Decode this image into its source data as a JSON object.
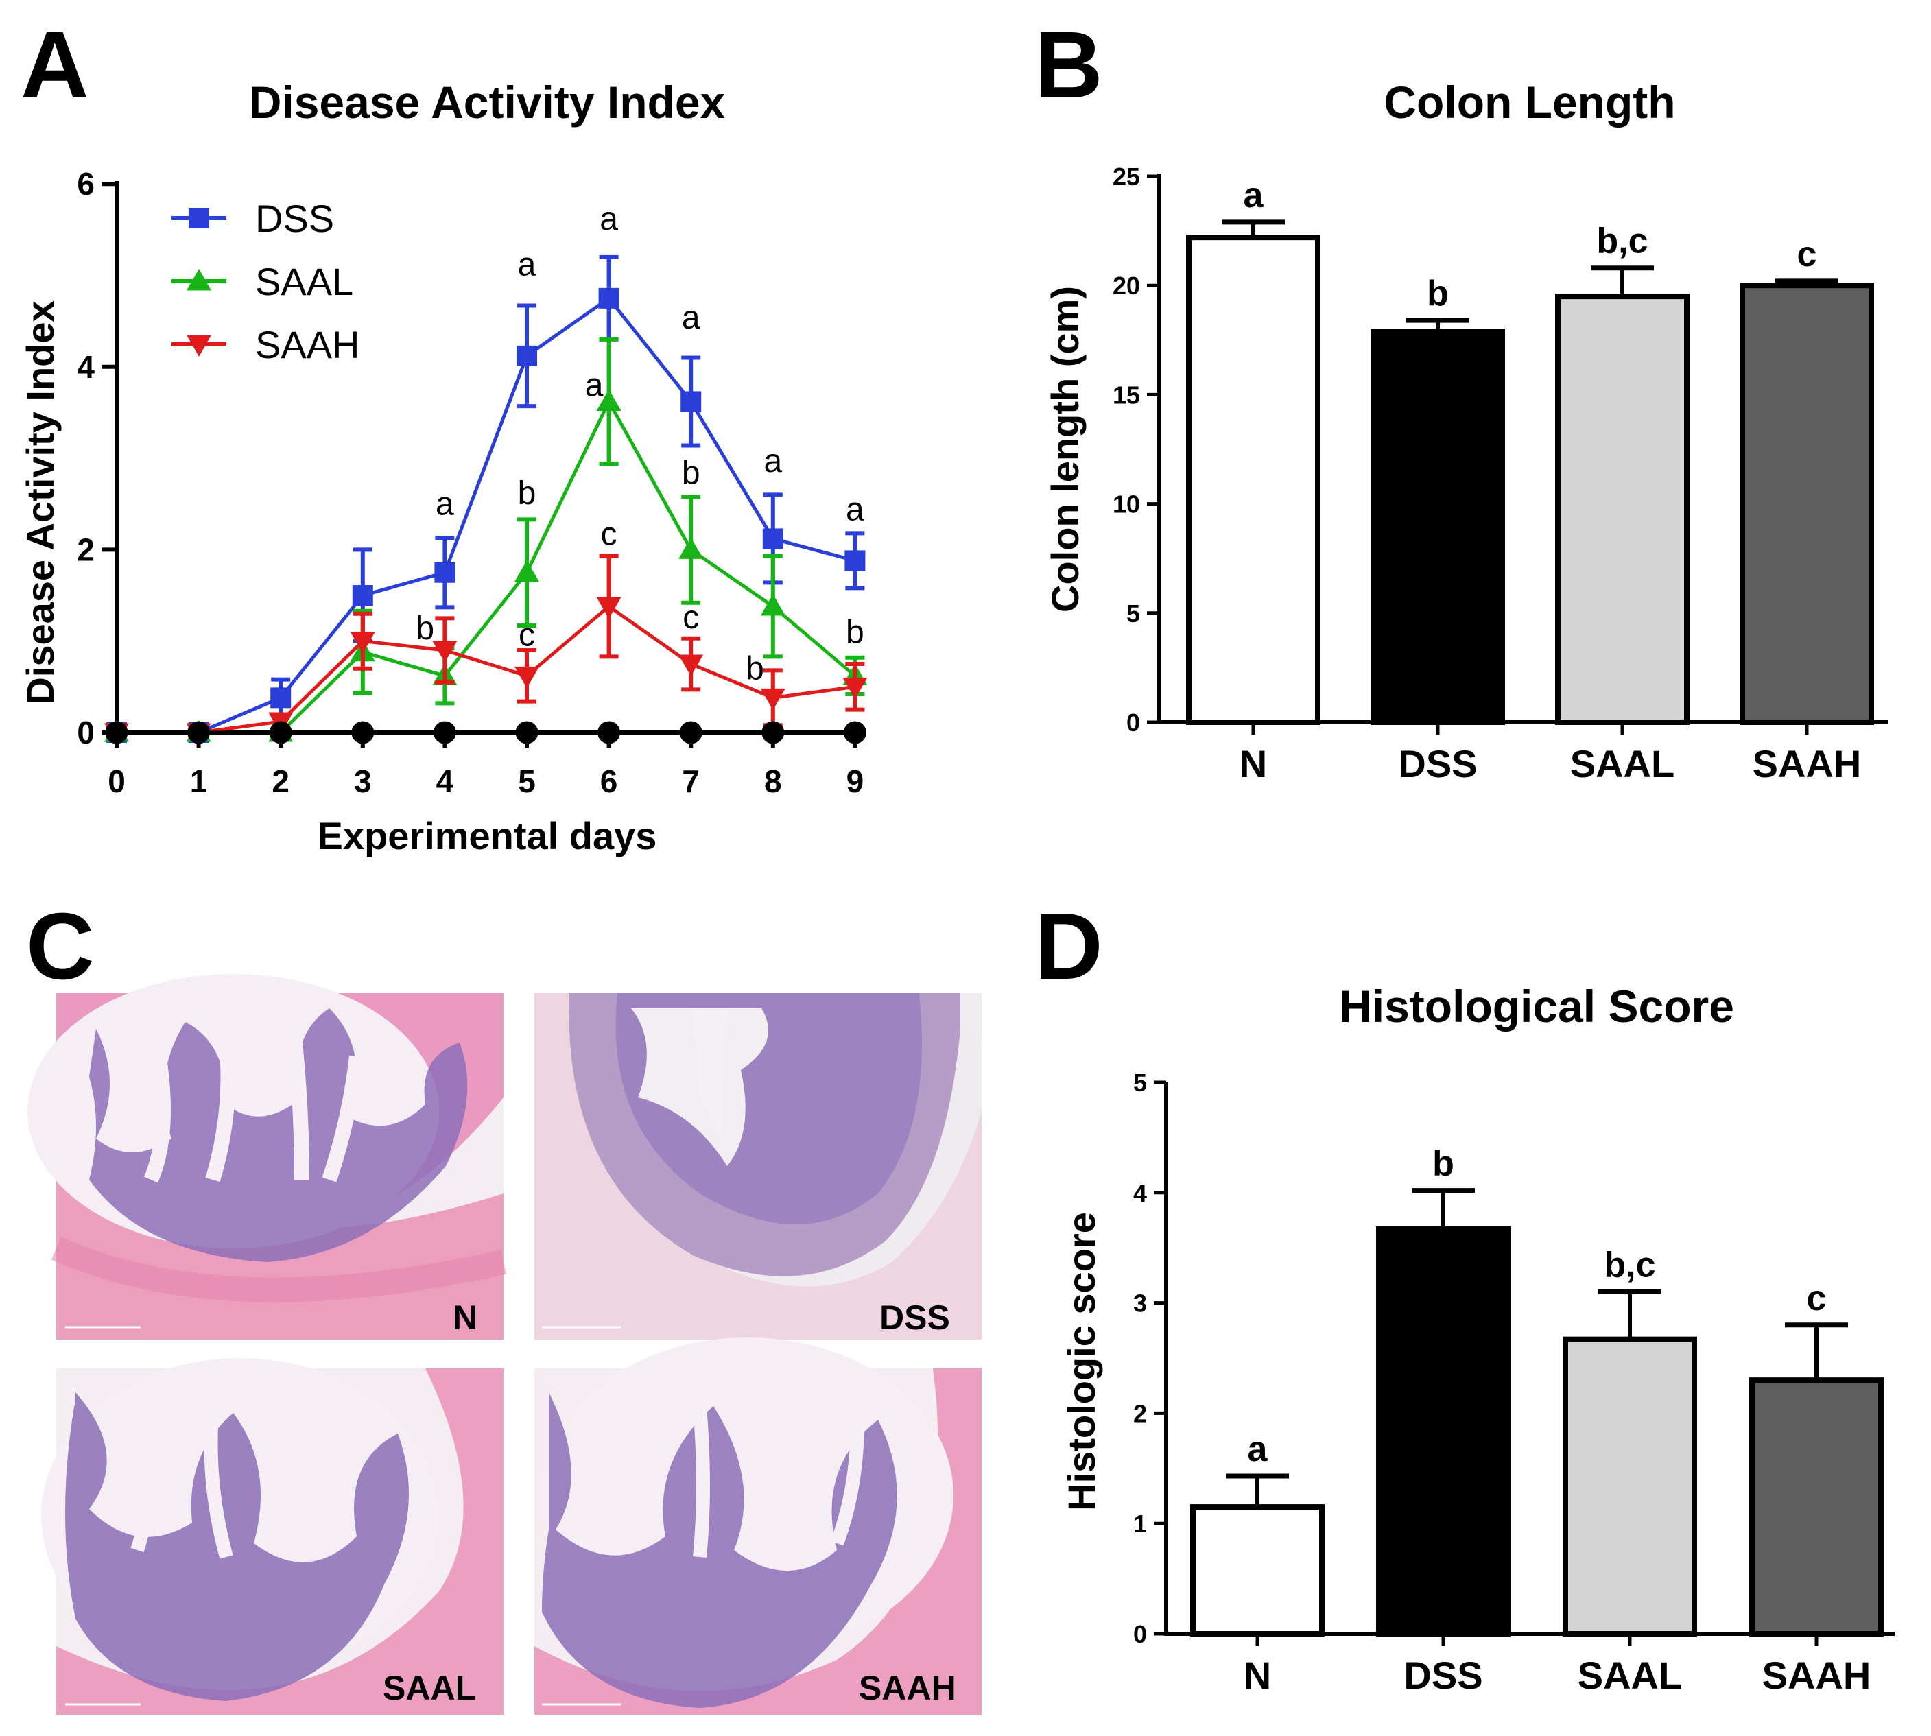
{
  "panel_letters": {
    "a": "A",
    "b": "B",
    "c": "C",
    "d": "D"
  },
  "chart_data": [
    {
      "id": "A",
      "type": "line",
      "title": "Disease Activity Index",
      "xlabel": "Experimental days",
      "ylabel": "Disease Activity Index",
      "x": [
        0,
        1,
        2,
        3,
        4,
        5,
        6,
        7,
        8,
        9
      ],
      "xlim": [
        0,
        9
      ],
      "ylim": [
        0,
        6
      ],
      "yticks": [
        0,
        2,
        4,
        6
      ],
      "legend_position": "top-left",
      "series": [
        {
          "name": "N",
          "in_legend": false,
          "color": "#000000",
          "marker": "circle",
          "values": [
            0,
            0,
            0,
            0,
            0,
            0,
            0,
            0,
            0,
            0
          ],
          "errors": [
            0,
            0,
            0,
            0,
            0,
            0,
            0,
            0,
            0,
            0
          ]
        },
        {
          "name": "DSS",
          "in_legend": true,
          "color": "#2a3fd8",
          "marker": "square",
          "values": [
            0,
            0,
            0.38,
            1.5,
            1.75,
            4.12,
            4.75,
            3.62,
            2.12,
            1.88
          ],
          "errors": [
            0,
            0,
            0.2,
            0.5,
            0.38,
            0.55,
            0.45,
            0.48,
            0.48,
            0.3
          ]
        },
        {
          "name": "SAAL",
          "in_legend": true,
          "color": "#16b416",
          "marker": "triangle-up",
          "values": [
            0,
            0,
            0,
            0.88,
            0.62,
            1.75,
            3.62,
            2.0,
            1.38,
            0.62
          ],
          "errors": [
            0,
            0,
            0,
            0.45,
            0.3,
            0.58,
            0.68,
            0.58,
            0.55,
            0.2
          ]
        },
        {
          "name": "SAAH",
          "in_legend": true,
          "color": "#e01b1b",
          "marker": "triangle-down",
          "values": [
            0,
            0,
            0.12,
            1.0,
            0.9,
            0.62,
            1.38,
            0.75,
            0.38,
            0.5
          ],
          "errors": [
            0,
            0,
            0,
            0.3,
            0.35,
            0.28,
            0.55,
            0.28,
            0.3,
            0.25
          ]
        }
      ],
      "annotations": [
        {
          "x": 4,
          "y": 2.38,
          "text": "a"
        },
        {
          "x": 5,
          "y": 5.0,
          "text": "a"
        },
        {
          "x": 6,
          "y": 5.5,
          "text": "a"
        },
        {
          "x": 7,
          "y": 4.42,
          "text": "a"
        },
        {
          "x": 8,
          "y": 2.85,
          "text": "a"
        },
        {
          "x": 9,
          "y": 2.32,
          "text": "a"
        },
        {
          "x": 5,
          "y": 2.5,
          "text": "b"
        },
        {
          "x": 5.82,
          "y": 3.68,
          "text": "a"
        },
        {
          "x": 7,
          "y": 2.72,
          "text": "b"
        },
        {
          "x": 3.76,
          "y": 1.02,
          "text": "b"
        },
        {
          "x": 5,
          "y": 0.95,
          "text": "c"
        },
        {
          "x": 6,
          "y": 2.05,
          "text": "c"
        },
        {
          "x": 7,
          "y": 1.14,
          "text": "c"
        },
        {
          "x": 9,
          "y": 0.98,
          "text": "b"
        },
        {
          "x": 7.78,
          "y": 0.58,
          "text": "b"
        }
      ]
    },
    {
      "id": "B",
      "type": "bar",
      "title": "Colon Length",
      "xlabel": "",
      "ylabel": "Colon length (cm)",
      "categories": [
        "N",
        "DSS",
        "SAAL",
        "SAAH"
      ],
      "values": [
        22.2,
        17.9,
        19.5,
        20.0
      ],
      "errors": [
        0.7,
        0.5,
        1.3,
        0.2
      ],
      "colors": [
        "#ffffff",
        "#000000",
        "#d4d4d4",
        "#5e5e5e"
      ],
      "labels": [
        "a",
        "b",
        "b,c",
        "c"
      ],
      "ylim": [
        0,
        25
      ],
      "yticks": [
        0,
        5,
        10,
        15,
        20,
        25
      ]
    },
    {
      "id": "D",
      "type": "bar",
      "title": "Histological Score",
      "xlabel": "",
      "ylabel": "Histologic score",
      "categories": [
        "N",
        "DSS",
        "SAAL",
        "SAAH"
      ],
      "values": [
        1.15,
        3.67,
        2.67,
        2.3
      ],
      "errors": [
        0.28,
        0.35,
        0.43,
        0.5
      ],
      "colors": [
        "#ffffff",
        "#000000",
        "#d4d4d4",
        "#5e5e5e"
      ],
      "labels": [
        "a",
        "b",
        "b,c",
        "c"
      ],
      "ylim": [
        0,
        5
      ],
      "yticks": [
        0,
        1,
        2,
        3,
        4,
        5
      ]
    }
  ],
  "histology": {
    "panels": [
      {
        "label": "N"
      },
      {
        "label": "DSS"
      },
      {
        "label": "SAAL"
      },
      {
        "label": "SAAH"
      }
    ]
  }
}
